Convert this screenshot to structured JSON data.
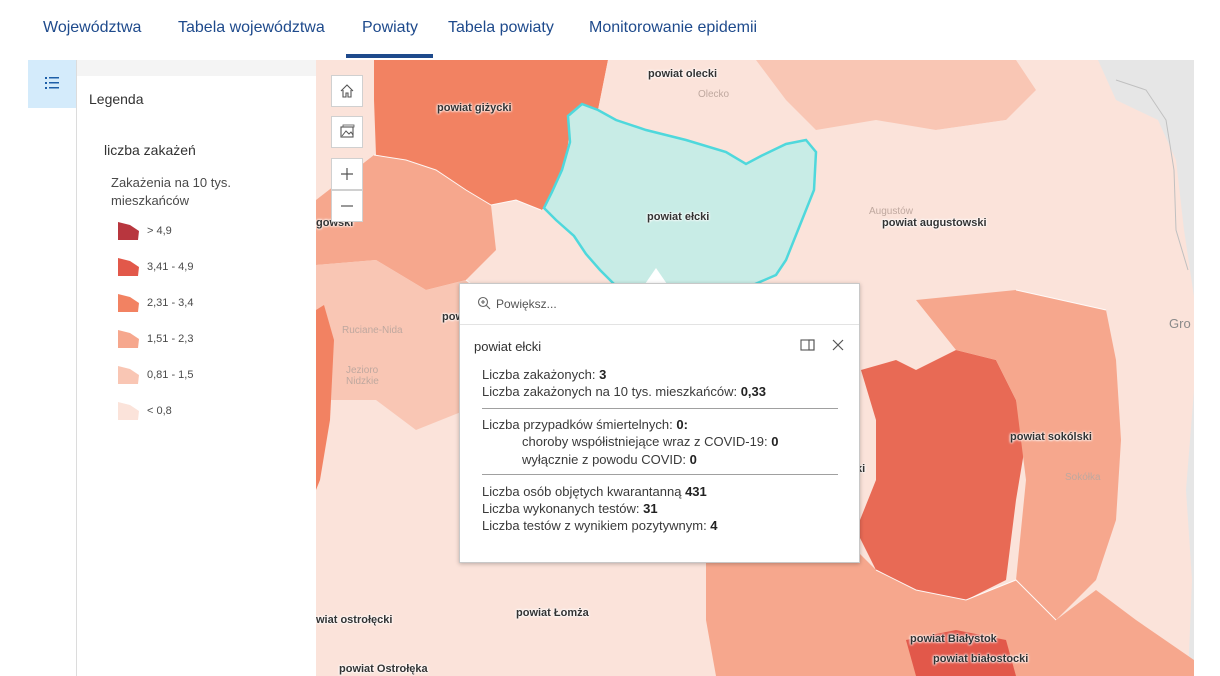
{
  "tabs": [
    {
      "label": "Województwa"
    },
    {
      "label": "Tabela województwa"
    },
    {
      "label": "Powiaty",
      "active": true
    },
    {
      "label": "Tabela powiaty"
    },
    {
      "label": "Monitorowanie epidemii"
    }
  ],
  "legend": {
    "panel_title": "Legenda",
    "layer_title": "liczba zakażeń",
    "field_title": "Zakażenia na 10 tys. mieszkańców",
    "classes": [
      {
        "label": "> 4,9",
        "color": "#b8363e"
      },
      {
        "label": "3,41 - 4,9",
        "color": "#e2584a"
      },
      {
        "label": "2,31 - 3,4",
        "color": "#f28262"
      },
      {
        "label": "1,51 - 2,3",
        "color": "#f6a78d"
      },
      {
        "label": "0,81 - 1,5",
        "color": "#f9c6b4"
      },
      {
        "label": "< 0,8",
        "color": "#fbe3da"
      }
    ]
  },
  "map": {
    "controls": [
      "home-icon",
      "basemap-icon",
      "zoom-in-icon",
      "zoom-out-icon"
    ],
    "labels": {
      "olecki": "powiat olecki",
      "gizycki": "powiat giżycki",
      "elcki": "powiat ełcki",
      "augustowski": "powiat augustowski",
      "mragowski": "gowski",
      "pisz": "pow",
      "sokolski": "powiat sokólski",
      "lomza": "powiat Łomża",
      "ostrolecki": "wiat ostrołęcki",
      "ostroleka": "powiat Ostrołęka",
      "bialystok": "powiat Białystok",
      "bialostocki": "powiat białostocki",
      "cut_k": "ki"
    },
    "places": {
      "olecko": "Olecko",
      "augustow": "Augustów",
      "ruciane": "Ruciane-Nida",
      "jezioro": "Jezioro Nidzkie",
      "sokolka": "Sokółka",
      "gro": "Gro"
    },
    "colors": {
      "selected_fill": "#c8ece6",
      "selected_outline": "#4fd8dc"
    }
  },
  "popup": {
    "zoom_label": "Powiększ...",
    "title": "powiat ełcki",
    "lines": [
      {
        "label": "Liczba zakażonych: ",
        "value": "3"
      },
      {
        "label": "Liczba zakażonych na 10 tys. mieszkańców: ",
        "value": "0,33"
      }
    ],
    "deaths": {
      "label": "Liczba przypadków śmiertelnych: ",
      "value": "0:"
    },
    "deaths_sub": [
      {
        "label": "choroby współistniejące wraz z COVID-19: ",
        "value": "0"
      },
      {
        "label": "wyłącznie z powodu COVID: ",
        "value": "0"
      }
    ],
    "tests": [
      {
        "label": "Liczba osób objętych kwarantanną ",
        "value": "431"
      },
      {
        "label": "Liczba wykonanych testów: ",
        "value": "31"
      },
      {
        "label": "Liczba testów z wynikiem pozytywnym: ",
        "value": "4"
      }
    ]
  }
}
